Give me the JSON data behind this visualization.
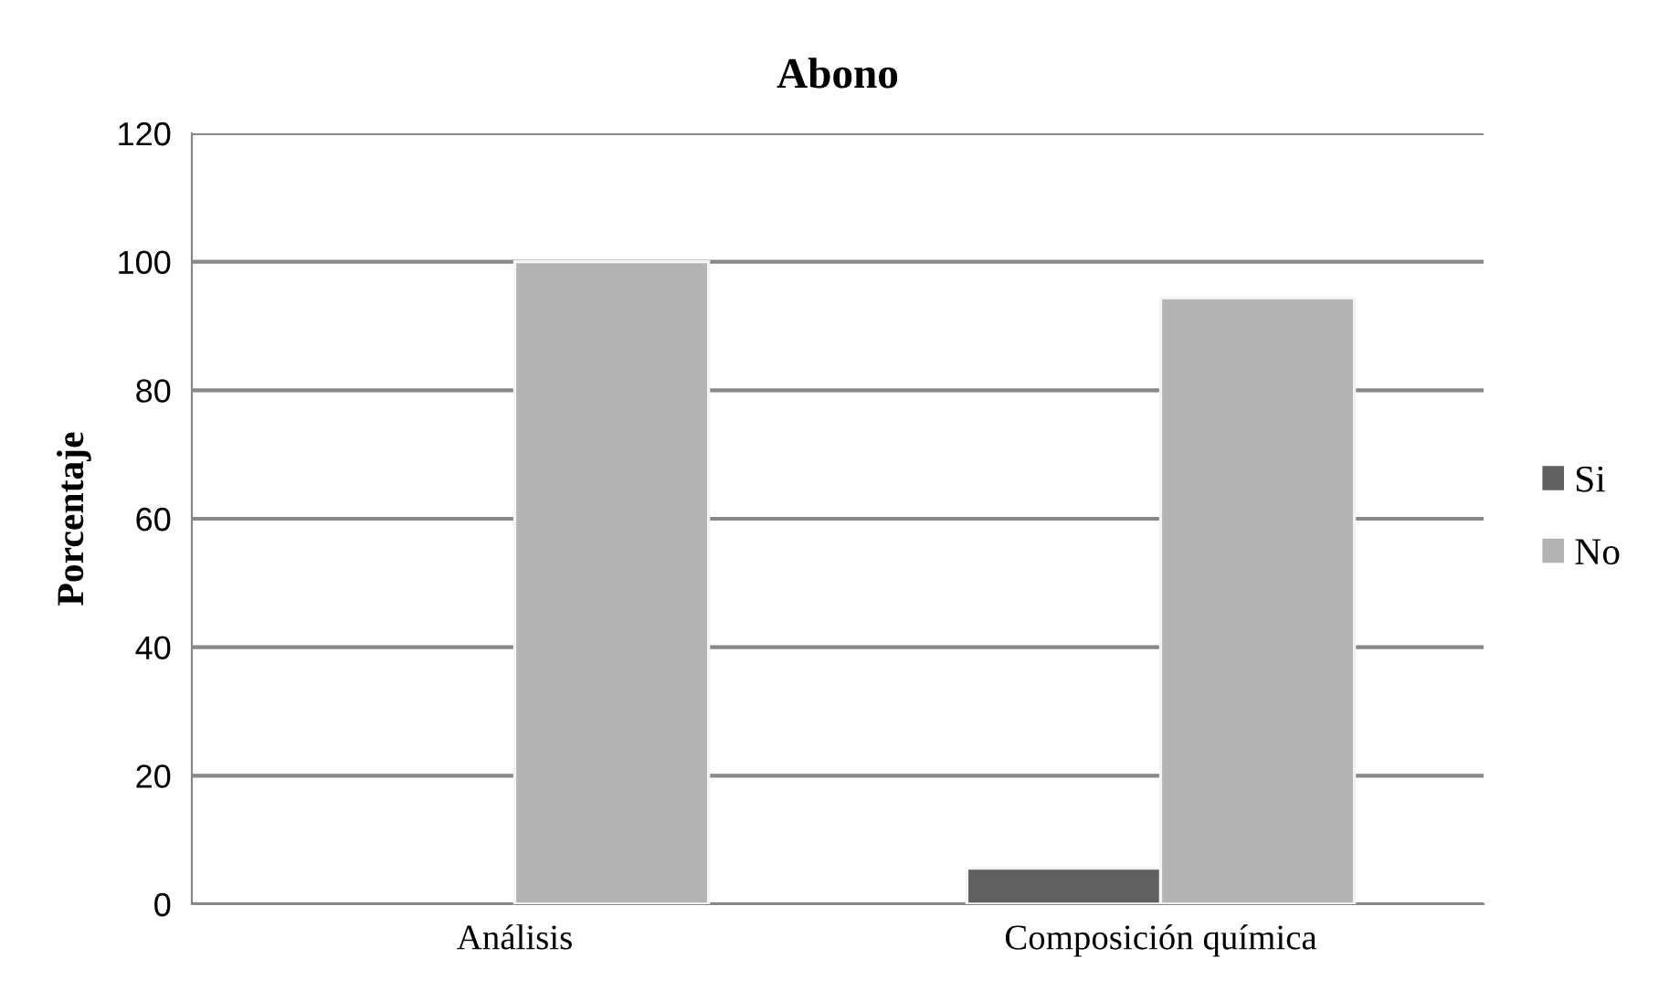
{
  "chart_data": {
    "type": "bar",
    "title": "Abono",
    "ylabel": "Porcentaje",
    "categories": [
      "Análisis",
      "Composición química"
    ],
    "series": [
      {
        "name": "Si",
        "color": "#606060",
        "values": [
          0,
          5.6
        ]
      },
      {
        "name": "No",
        "color": "#b3b3b3",
        "values": [
          100,
          94.4
        ]
      }
    ],
    "ylim": [
      0,
      120
    ],
    "yticks": [
      0,
      20,
      40,
      60,
      80,
      100,
      120
    ],
    "grid": "y",
    "legend": "right"
  }
}
